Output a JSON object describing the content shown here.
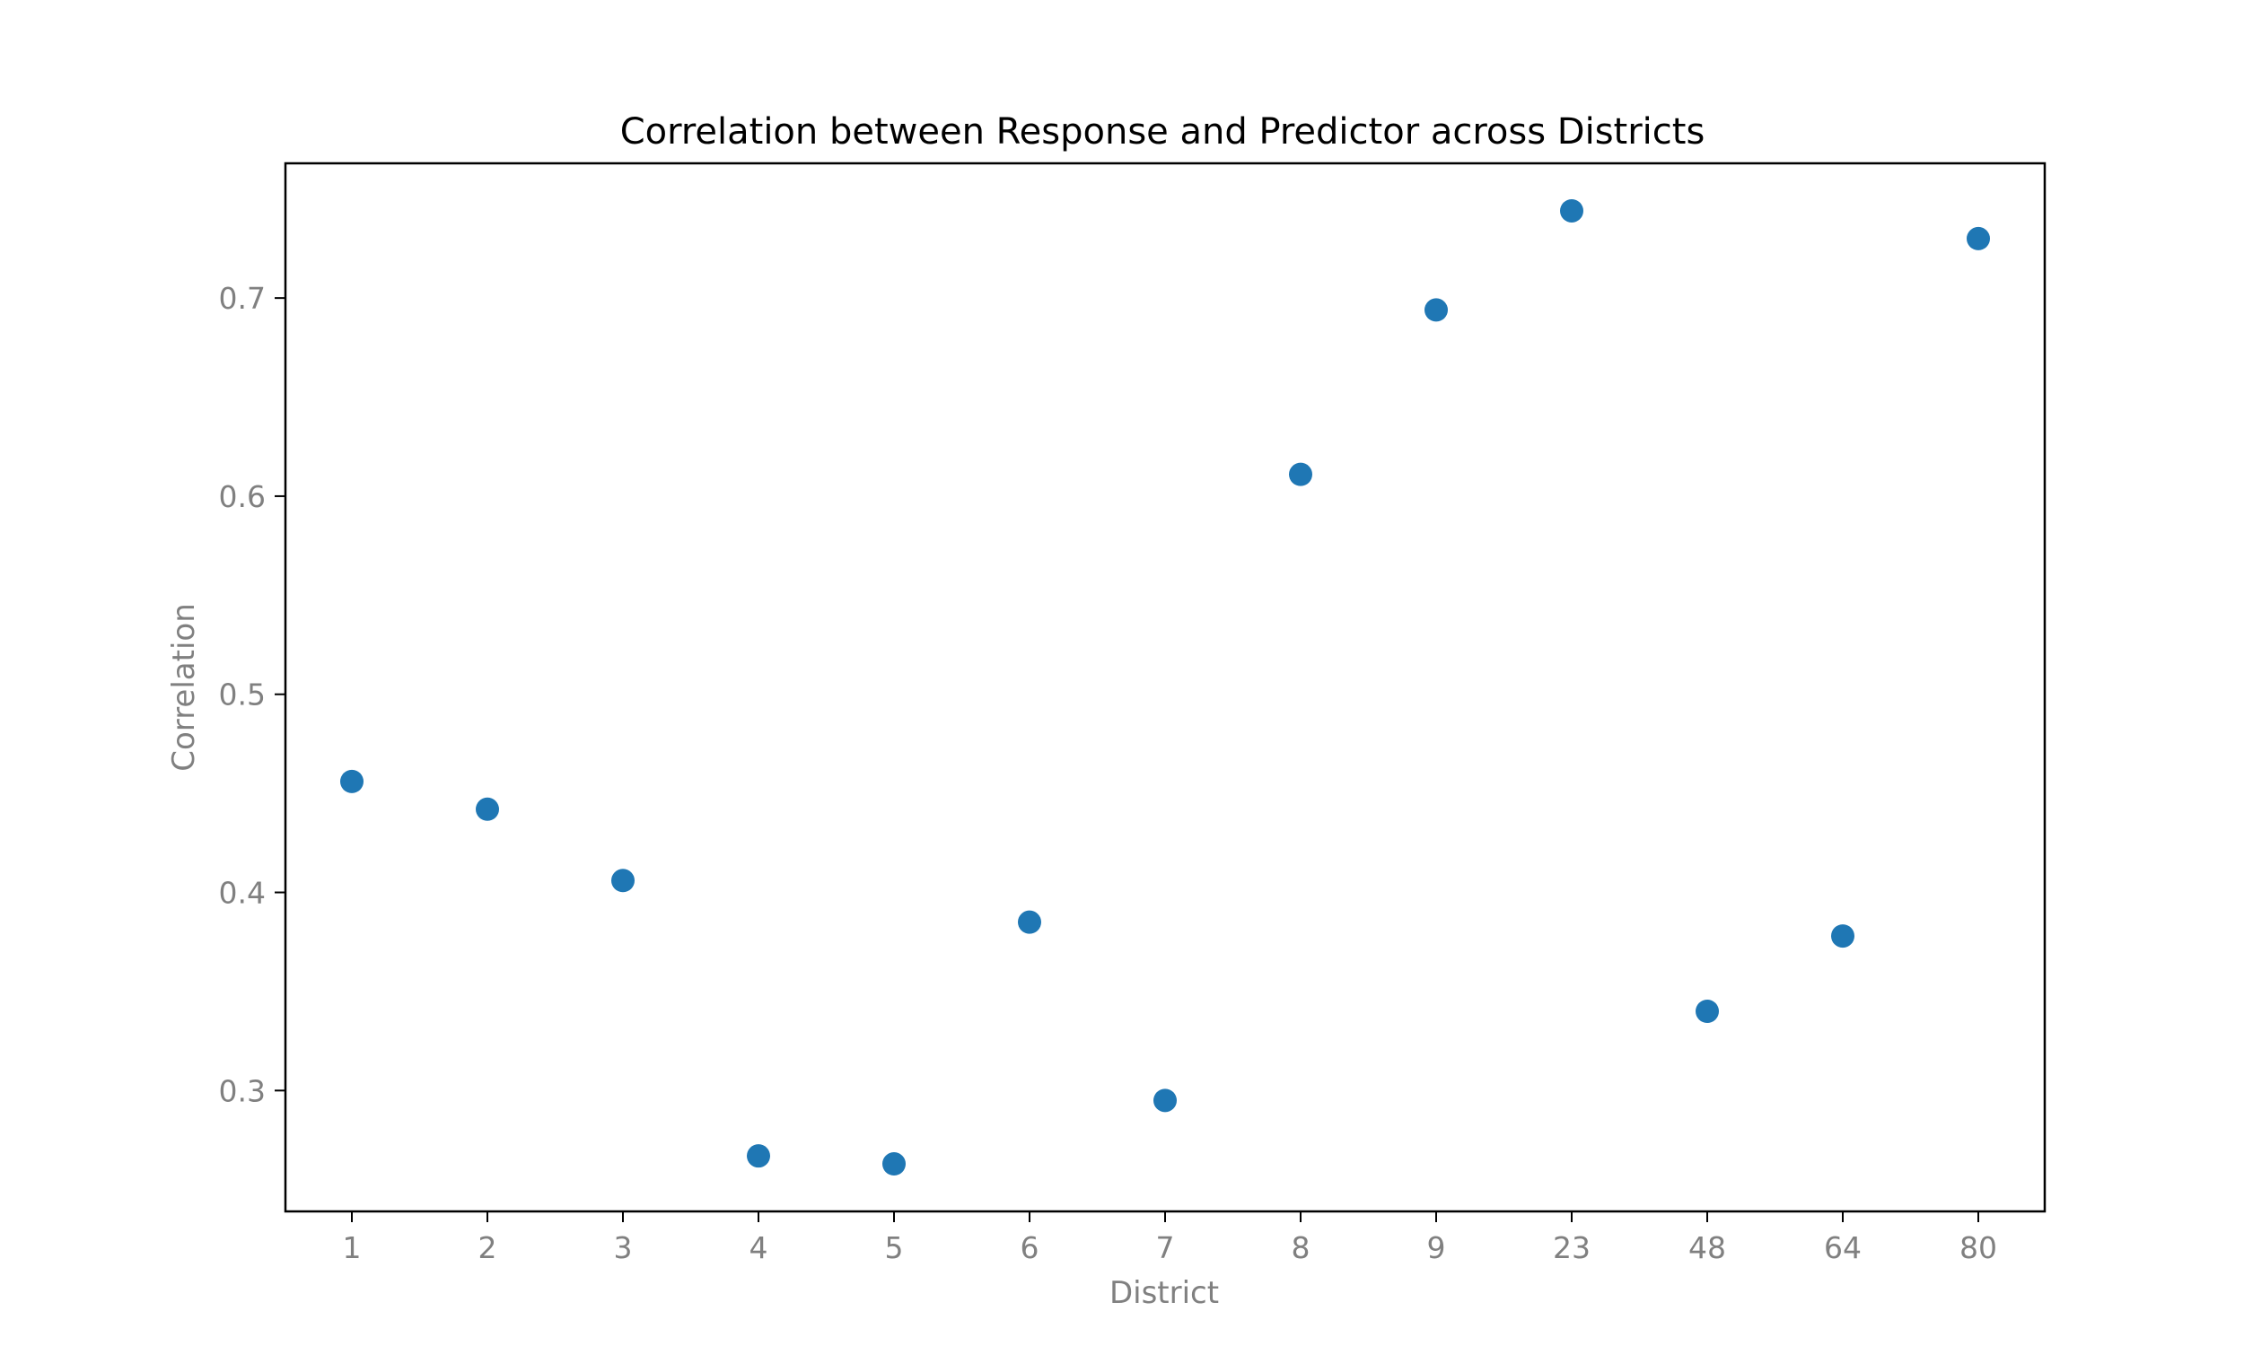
{
  "chart_data": {
    "type": "scatter",
    "title": "Correlation between Response and Predictor across Districts",
    "xlabel": "District",
    "ylabel": "Correlation",
    "categories": [
      "1",
      "2",
      "3",
      "4",
      "5",
      "6",
      "7",
      "8",
      "9",
      "23",
      "48",
      "64",
      "80"
    ],
    "values": [
      0.456,
      0.442,
      0.406,
      0.267,
      0.263,
      0.385,
      0.295,
      0.611,
      0.694,
      0.744,
      0.34,
      0.378,
      0.73
    ],
    "ylim": [
      0.239,
      0.768
    ],
    "yticks": [
      0.3,
      0.4,
      0.5,
      0.6,
      0.7
    ],
    "ytick_labels": [
      "0.3",
      "0.4",
      "0.5",
      "0.6",
      "0.7"
    ],
    "grid": false,
    "marker_color": "#1f77b4"
  }
}
